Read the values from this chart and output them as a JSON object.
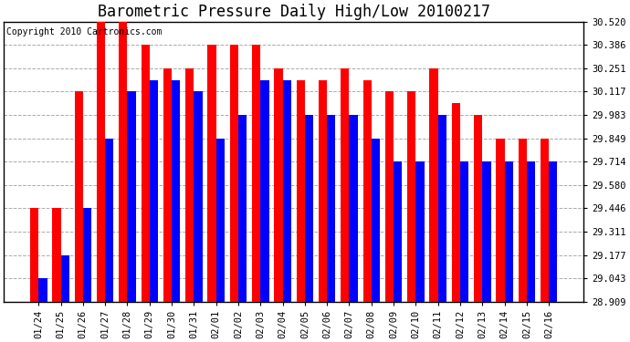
{
  "title": "Barometric Pressure Daily High/Low 20100217",
  "copyright": "Copyright 2010 Cartronics.com",
  "dates": [
    "01/24",
    "01/25",
    "01/26",
    "01/27",
    "01/28",
    "01/29",
    "01/30",
    "01/31",
    "02/01",
    "02/02",
    "02/03",
    "02/04",
    "02/05",
    "02/06",
    "02/07",
    "02/08",
    "02/09",
    "02/10",
    "02/11",
    "02/12",
    "02/13",
    "02/14",
    "02/15",
    "02/16"
  ],
  "highs": [
    29.446,
    29.446,
    30.117,
    30.52,
    30.52,
    30.386,
    30.251,
    30.251,
    30.386,
    30.386,
    30.386,
    30.251,
    30.183,
    30.183,
    30.251,
    30.183,
    30.117,
    30.117,
    30.251,
    30.051,
    29.983,
    29.849,
    29.849,
    29.849
  ],
  "lows": [
    29.043,
    29.177,
    29.446,
    29.849,
    30.117,
    30.183,
    30.183,
    30.117,
    29.849,
    29.983,
    30.183,
    30.183,
    29.983,
    29.983,
    29.983,
    29.849,
    29.714,
    29.714,
    29.983,
    29.714,
    29.714,
    29.714,
    29.714,
    29.714
  ],
  "high_color": "#ff0000",
  "low_color": "#0000ff",
  "bg_color": "#ffffff",
  "grid_color": "#aaaaaa",
  "ymin": 28.909,
  "ymax": 30.52,
  "yticks": [
    28.909,
    29.043,
    29.177,
    29.311,
    29.446,
    29.58,
    29.714,
    29.849,
    29.983,
    30.117,
    30.251,
    30.386,
    30.52
  ],
  "title_fontsize": 12,
  "copyright_fontsize": 7,
  "tick_fontsize": 7.5,
  "bar_width": 0.38
}
